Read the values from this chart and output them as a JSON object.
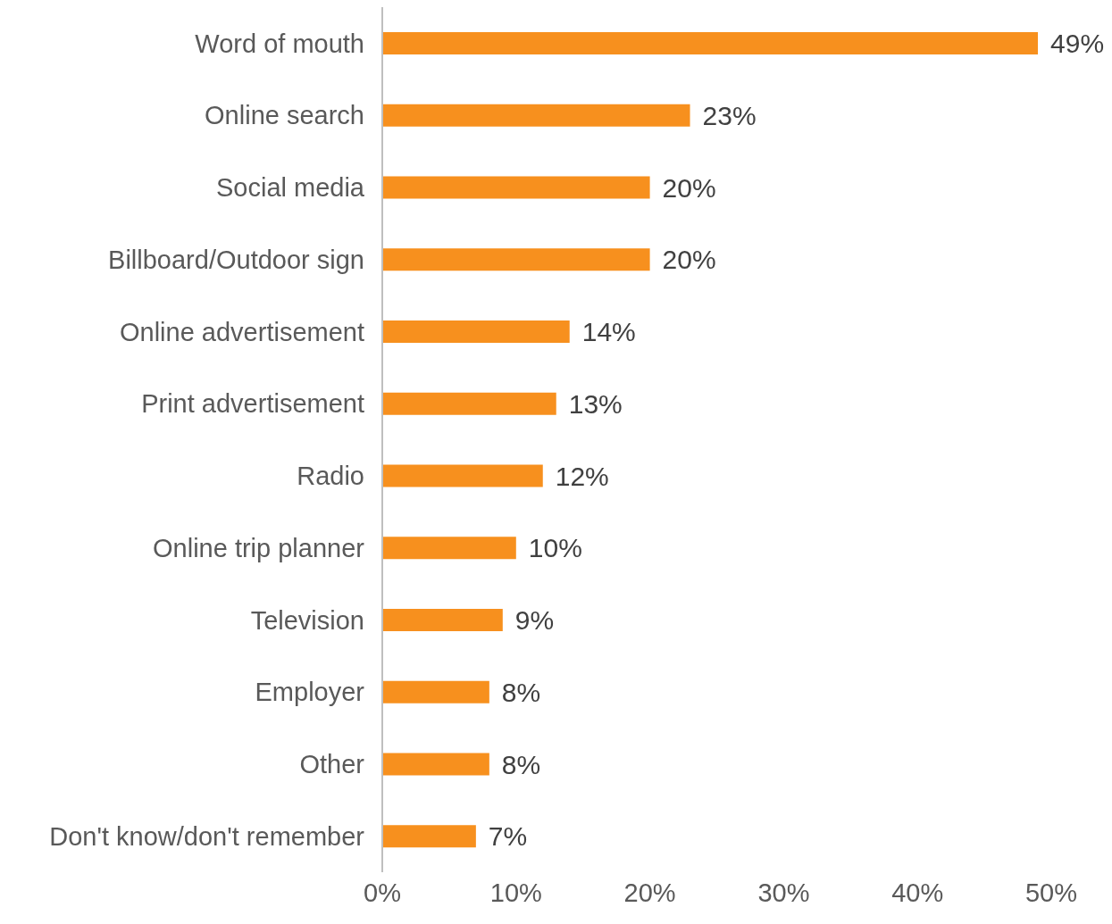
{
  "chart_data": {
    "type": "bar",
    "orientation": "horizontal",
    "categories": [
      "Word of mouth",
      "Online search",
      "Social media",
      "Billboard/Outdoor sign",
      "Online advertisement",
      "Print advertisement",
      "Radio",
      "Online trip planner",
      "Television",
      "Employer",
      "Other",
      "Don't know/don't remember"
    ],
    "values": [
      49,
      23,
      20,
      20,
      14,
      13,
      12,
      10,
      9,
      8,
      8,
      7
    ],
    "value_labels": [
      "49%",
      "23%",
      "20%",
      "20%",
      "14%",
      "13%",
      "12%",
      "10%",
      "9%",
      "8%",
      "8%",
      "7%"
    ],
    "color": "#f7901e",
    "xlim": [
      0,
      50
    ],
    "xticks": [
      {
        "value": 0,
        "label": "0%"
      },
      {
        "value": 10,
        "label": "10%"
      },
      {
        "value": 20,
        "label": "20%"
      },
      {
        "value": 30,
        "label": "30%"
      },
      {
        "value": 40,
        "label": "40%"
      },
      {
        "value": 50,
        "label": "50%"
      }
    ],
    "grid": false,
    "legend": false
  }
}
